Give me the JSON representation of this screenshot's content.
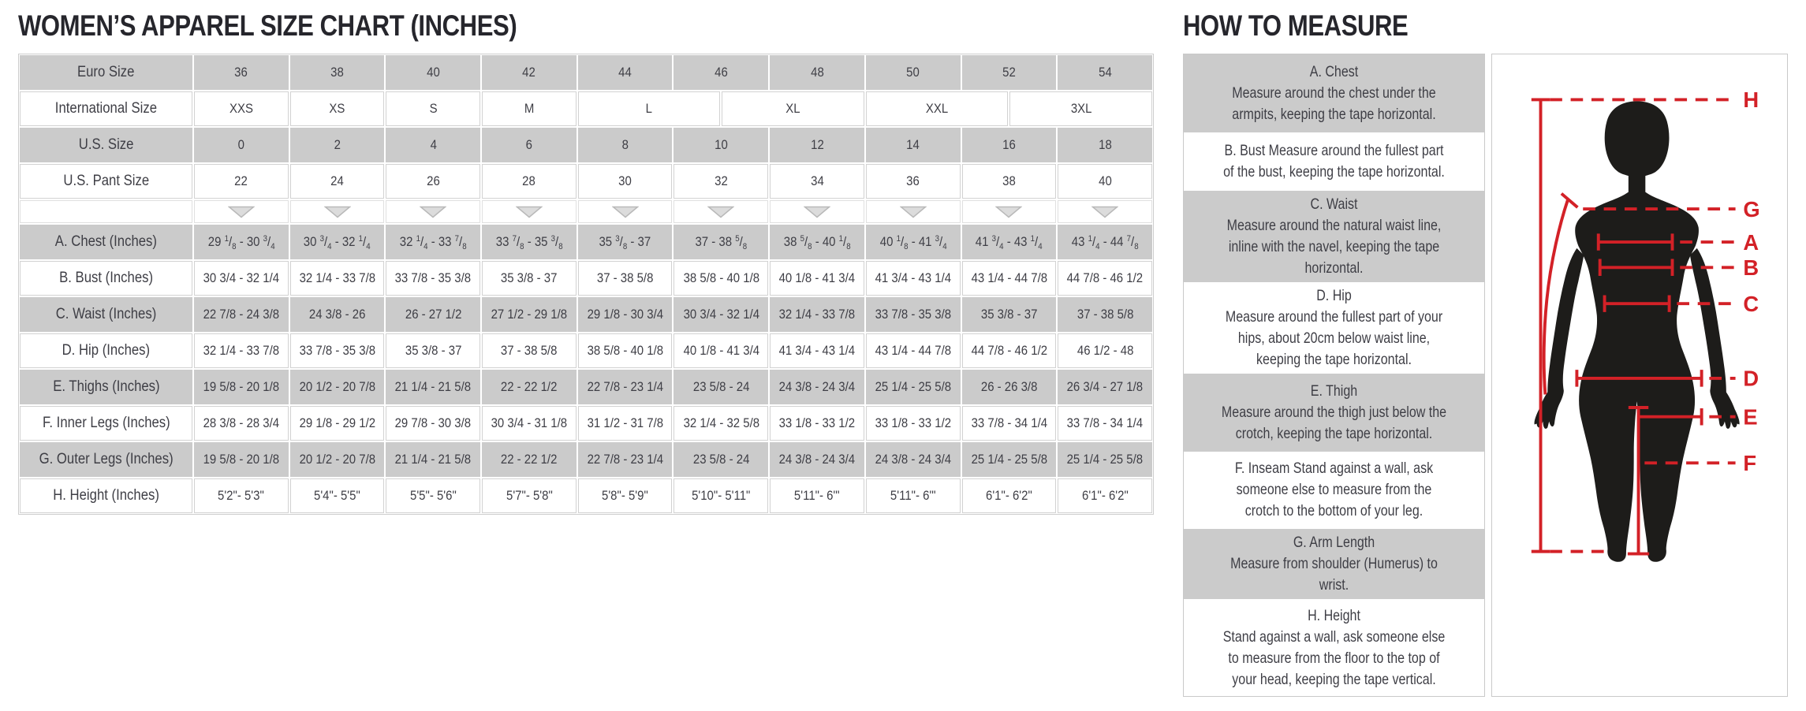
{
  "colors": {
    "accent": "#d32127",
    "shade": "#cbcbcb",
    "text": "#3e3e45",
    "title": "#26262c",
    "body": "#1d1c1a",
    "arrow_fill": "#dcdcdc",
    "arrow_stroke": "#b9b9b9"
  },
  "size_chart": {
    "title": "WOMEN’S APPAREL SIZE CHART (INCHES)",
    "rows": [
      {
        "kind": "header",
        "label": "Euro Size",
        "shaded": true,
        "cells": [
          {
            "text": "36",
            "span": 2
          },
          {
            "text": "38",
            "span": 2
          },
          {
            "text": "40",
            "span": 2
          },
          {
            "text": "42",
            "span": 2
          },
          {
            "text": "44",
            "span": 2
          },
          {
            "text": "46",
            "span": 2
          },
          {
            "text": "48",
            "span": 2
          },
          {
            "text": "50",
            "span": 2
          },
          {
            "text": "52",
            "span": 2
          },
          {
            "text": "54",
            "span": 2
          }
        ]
      },
      {
        "kind": "header",
        "label": "International Size",
        "shaded": false,
        "cells": [
          {
            "text": "XXS",
            "span": 2
          },
          {
            "text": "XS",
            "span": 2
          },
          {
            "text": "S",
            "span": 2
          },
          {
            "text": "M",
            "span": 2
          },
          {
            "text": "L",
            "span": 3
          },
          {
            "text": "XL",
            "span": 3
          },
          {
            "text": "XXL",
            "span": 3
          },
          {
            "text": "3XL",
            "span": 3
          }
        ]
      },
      {
        "kind": "header",
        "label": "U.S. Size",
        "shaded": true,
        "cells": [
          {
            "text": "0",
            "span": 2
          },
          {
            "text": "2",
            "span": 2
          },
          {
            "text": "4",
            "span": 2
          },
          {
            "text": "6",
            "span": 2
          },
          {
            "text": "8",
            "span": 2
          },
          {
            "text": "10",
            "span": 2
          },
          {
            "text": "12",
            "span": 2
          },
          {
            "text": "14",
            "span": 2
          },
          {
            "text": "16",
            "span": 2
          },
          {
            "text": "18",
            "span": 2
          }
        ]
      },
      {
        "kind": "header",
        "label": "U.S. Pant Size",
        "shaded": false,
        "cells": [
          {
            "text": "22",
            "span": 2
          },
          {
            "text": "24",
            "span": 2
          },
          {
            "text": "26",
            "span": 2
          },
          {
            "text": "28",
            "span": 2
          },
          {
            "text": "30",
            "span": 2
          },
          {
            "text": "32",
            "span": 2
          },
          {
            "text": "34",
            "span": 2
          },
          {
            "text": "36",
            "span": 2
          },
          {
            "text": "38",
            "span": 2
          },
          {
            "text": "40",
            "span": 2
          }
        ]
      },
      {
        "kind": "arrows",
        "label": "",
        "shaded": false,
        "count": 10
      },
      {
        "kind": "data",
        "label": "A. Chest (Inches)",
        "shaded": true,
        "fraction_style": "superscript",
        "values": [
          "29 1/8 - 30 3/4",
          "30 3/4 - 32 1/4",
          "32 1/4 - 33 7/8",
          "33 7/8 - 35 3/8",
          "35 3/8 - 37",
          "37 - 38 5/8",
          "38 5/8 - 40 1/8",
          "40 1/8 - 41 3/4",
          "41 3/4 - 43 1/4",
          "43 1/4 - 44 7/8"
        ]
      },
      {
        "kind": "data",
        "label": "B. Bust (Inches)",
        "shaded": false,
        "fraction_style": "plain",
        "values": [
          "30 3/4 - 32 1/4",
          "32 1/4 - 33 7/8",
          "33 7/8 - 35 3/8",
          "35 3/8 - 37",
          "37 - 38 5/8",
          "38 5/8 - 40 1/8",
          "40 1/8 - 41 3/4",
          "41 3/4 - 43 1/4",
          "43 1/4 - 44 7/8",
          "44 7/8 - 46 1/2"
        ]
      },
      {
        "kind": "data",
        "label": "C. Waist (Inches)",
        "shaded": true,
        "fraction_style": "plain",
        "values": [
          "22 7/8 - 24 3/8",
          "24 3/8 - 26",
          "26 - 27 1/2",
          "27 1/2 - 29 1/8",
          "29 1/8 - 30 3/4",
          "30 3/4 - 32 1/4",
          "32 1/4 - 33 7/8",
          "33 7/8 - 35 3/8",
          "35 3/8 - 37",
          "37 - 38 5/8"
        ]
      },
      {
        "kind": "data",
        "label": "D. Hip (Inches)",
        "shaded": false,
        "fraction_style": "plain",
        "values": [
          "32 1/4 - 33 7/8",
          "33 7/8 - 35 3/8",
          "35 3/8 - 37",
          "37 - 38 5/8",
          "38 5/8 - 40 1/8",
          "40 1/8 - 41 3/4",
          "41 3/4 - 43 1/4",
          "43 1/4 - 44 7/8",
          "44 7/8 - 46 1/2",
          "46 1/2 - 48"
        ]
      },
      {
        "kind": "data",
        "label": "E. Thighs (Inches)",
        "shaded": true,
        "fraction_style": "plain",
        "values": [
          "19 5/8 - 20 1/8",
          "20 1/2 - 20 7/8",
          "21 1/4 - 21 5/8",
          "22 - 22 1/2",
          "22 7/8 - 23 1/4",
          "23 5/8 - 24",
          "24 3/8 - 24 3/4",
          "25 1/4 - 25 5/8",
          "26 - 26 3/8",
          "26 3/4 - 27 1/8"
        ]
      },
      {
        "kind": "data",
        "label": "F. Inner Legs (Inches)",
        "shaded": false,
        "fraction_style": "plain",
        "values": [
          "28 3/8 - 28 3/4",
          "29 1/8 - 29 1/2",
          "29 7/8 - 30 3/8",
          "30 3/4 - 31 1/8",
          "31 1/2 - 31 7/8",
          "32 1/4 - 32 5/8",
          "33 1/8 - 33 1/2",
          "33 1/8 - 33 1/2",
          "33 7/8 - 34 1/4",
          "33 7/8 - 34 1/4"
        ]
      },
      {
        "kind": "data",
        "label": "G. Outer Legs (Inches)",
        "shaded": true,
        "fraction_style": "plain",
        "values": [
          "19 5/8 - 20 1/8",
          "20 1/2 - 20 7/8",
          "21 1/4 - 21 5/8",
          "22 - 22 1/2",
          "22 7/8 - 23 1/4",
          "23 5/8 - 24",
          "24 3/8 - 24 3/4",
          "24 3/8 - 24 3/4",
          "25 1/4 - 25 5/8",
          "25 1/4 - 25 5/8"
        ]
      },
      {
        "kind": "data",
        "label": "H. Height (Inches)",
        "shaded": false,
        "fraction_style": "plain",
        "values": [
          "5'2\"- 5'3\"",
          "5'4\"- 5'5\"",
          "5'5\"- 5'6\"",
          "5'7\"- 5'8\"",
          "5'8\"- 5'9\"",
          "5'10\"- 5'11\"",
          "5'11\"- 6'\"",
          "5'11\"- 6'\"",
          "6'1\"- 6'2\"",
          "6'1\"- 6'2\""
        ]
      }
    ]
  },
  "measure_guide": {
    "title": "HOW TO MEASURE",
    "sections": [
      {
        "heading": "A. Chest",
        "inline": false,
        "shaded": true,
        "text": "Measure around the chest under the armpits, keeping the tape horizontal."
      },
      {
        "heading": "B. Bust",
        "inline": true,
        "shaded": false,
        "text": "Measure around the fullest part of the bust, keeping the tape horizontal."
      },
      {
        "heading": "C. Waist",
        "inline": false,
        "shaded": true,
        "text": "Measure around the natural waist line, inline with the navel, keeping the tape horizontal."
      },
      {
        "heading": "D. Hip",
        "inline": false,
        "shaded": false,
        "text": "Measure around the fullest part of your hips, about 20cm below waist line, keeping the tape horizontal."
      },
      {
        "heading": "E. Thigh",
        "inline": false,
        "shaded": true,
        "text": "Measure around the thigh just below the crotch, keeping the tape horizontal."
      },
      {
        "heading": "F. Inseam",
        "inline": true,
        "shaded": false,
        "text": "Stand against a wall, ask someone else to measure from the crotch to the bottom of your leg."
      },
      {
        "heading": "G. Arm Length",
        "inline": false,
        "shaded": true,
        "text": "Measure from shoulder (Humerus) to wrist."
      },
      {
        "heading": "H. Height",
        "inline": false,
        "shaded": false,
        "text": "Stand against a wall, ask someone else to measure from the floor to the top of your head, keeping the tape vertical."
      }
    ],
    "figure": {
      "labels": [
        "H",
        "G",
        "A",
        "B",
        "C",
        "D",
        "E",
        "F"
      ]
    }
  }
}
